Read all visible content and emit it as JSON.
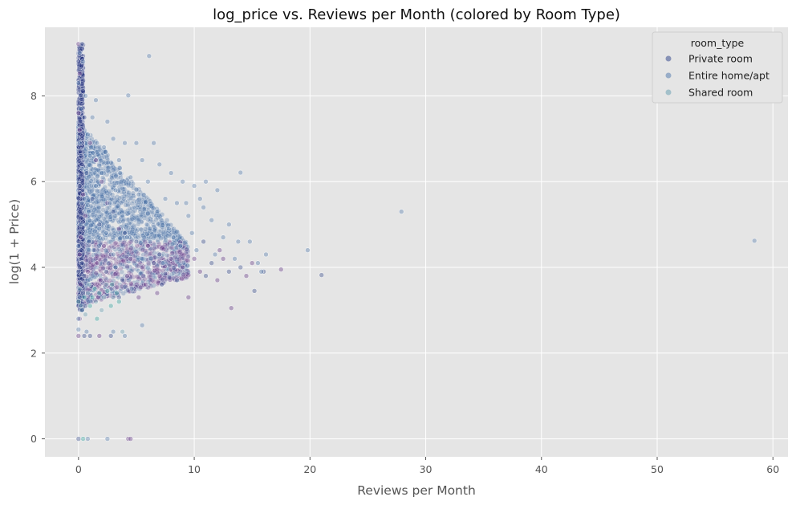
{
  "chart_data": {
    "type": "scatter",
    "title": "log_price vs. Reviews per Month (colored by Room Type)",
    "xlabel": "Reviews per Month",
    "ylabel": "log(1 + Price)",
    "xlim": [
      -2.9,
      61.3
    ],
    "ylim": [
      -0.42,
      9.6
    ],
    "xticks": [
      0,
      10,
      20,
      30,
      40,
      50,
      60
    ],
    "yticks": [
      0,
      2,
      4,
      6,
      8
    ],
    "grid": true,
    "legend": {
      "title": "room_type",
      "position": "top-right"
    },
    "series": [
      {
        "name": "Private room",
        "color": "#3b4f8f",
        "accent_color": "#6a3f8a",
        "points": [
          [
            0.0,
            9.21
          ],
          [
            0.3,
            9.21
          ],
          [
            0.1,
            8.52
          ],
          [
            0.2,
            8.01
          ],
          [
            0.0,
            7.6
          ],
          [
            0.5,
            7.5
          ],
          [
            0.1,
            7.2
          ],
          [
            0.3,
            6.9
          ],
          [
            1.0,
            6.9
          ],
          [
            0.2,
            6.6
          ],
          [
            1.5,
            6.5
          ],
          [
            0.7,
            6.2
          ],
          [
            2.0,
            6.0
          ],
          [
            0.1,
            5.9
          ],
          [
            0.4,
            5.7
          ],
          [
            1.2,
            5.6
          ],
          [
            2.5,
            5.5
          ],
          [
            3.0,
            5.3
          ],
          [
            0.6,
            5.2
          ],
          [
            1.8,
            5.0
          ],
          [
            3.5,
            4.9
          ],
          [
            4.0,
            4.8
          ],
          [
            0.2,
            4.7
          ],
          [
            0.9,
            4.6
          ],
          [
            2.2,
            4.5
          ],
          [
            5.0,
            4.6
          ],
          [
            6.0,
            4.5
          ],
          [
            1.4,
            4.4
          ],
          [
            0.1,
            4.3
          ],
          [
            2.8,
            4.3
          ],
          [
            4.5,
            4.2
          ],
          [
            7.0,
            4.3
          ],
          [
            8.0,
            4.2
          ],
          [
            0.3,
            4.1
          ],
          [
            1.6,
            4.1
          ],
          [
            3.2,
            4.0
          ],
          [
            5.5,
            4.0
          ],
          [
            6.5,
            4.1
          ],
          [
            9.0,
            4.0
          ],
          [
            0.0,
            3.9
          ],
          [
            0.8,
            3.9
          ],
          [
            2.4,
            3.9
          ],
          [
            4.2,
            3.8
          ],
          [
            7.5,
            3.85
          ],
          [
            10.5,
            3.9
          ],
          [
            0.5,
            3.8
          ],
          [
            1.9,
            3.7
          ],
          [
            3.8,
            3.7
          ],
          [
            5.8,
            3.6
          ],
          [
            8.5,
            3.7
          ],
          [
            0.2,
            3.6
          ],
          [
            1.1,
            3.55
          ],
          [
            2.9,
            3.5
          ],
          [
            4.8,
            3.5
          ],
          [
            6.8,
            3.4
          ],
          [
            0.4,
            3.4
          ],
          [
            1.7,
            3.3
          ],
          [
            3.5,
            3.3
          ],
          [
            0.0,
            3.2
          ],
          [
            0.6,
            3.1
          ],
          [
            9.5,
            3.3
          ],
          [
            11.0,
            3.8
          ],
          [
            12.0,
            3.7
          ],
          [
            13.0,
            3.9
          ],
          [
            14.5,
            3.8
          ],
          [
            16.0,
            3.9
          ],
          [
            17.5,
            3.95
          ],
          [
            21.0,
            3.82
          ],
          [
            13.2,
            3.05
          ],
          [
            15.2,
            3.45
          ],
          [
            0.1,
            2.8
          ],
          [
            1.0,
            2.4
          ],
          [
            0.0,
            2.4
          ],
          [
            0.5,
            2.4
          ],
          [
            1.8,
            2.4
          ],
          [
            2.8,
            2.4
          ],
          [
            4.3,
            0.0
          ],
          [
            0.0,
            0.0
          ],
          [
            4.5,
            0.0
          ],
          [
            0.3,
            3.0
          ],
          [
            5.2,
            3.3
          ],
          [
            7.2,
            3.6
          ],
          [
            10.0,
            4.2
          ],
          [
            11.5,
            4.1
          ],
          [
            12.5,
            4.2
          ],
          [
            14.0,
            4.0
          ],
          [
            15.0,
            4.1
          ],
          [
            10.8,
            4.6
          ],
          [
            12.2,
            4.4
          ]
        ]
      },
      {
        "name": "Entire home/apt",
        "color": "#5a7fb0",
        "points": [
          [
            0.1,
            9.0
          ],
          [
            0.4,
            8.8
          ],
          [
            0.0,
            8.3
          ],
          [
            0.6,
            8.0
          ],
          [
            1.5,
            7.9
          ],
          [
            4.3,
            8.01
          ],
          [
            6.1,
            8.93
          ],
          [
            0.2,
            7.7
          ],
          [
            1.2,
            7.5
          ],
          [
            2.5,
            7.4
          ],
          [
            3.0,
            7.0
          ],
          [
            0.8,
            7.1
          ],
          [
            4.0,
            6.9
          ],
          [
            5.0,
            6.9
          ],
          [
            6.5,
            6.9
          ],
          [
            2.2,
            6.8
          ],
          [
            1.0,
            6.6
          ],
          [
            3.5,
            6.5
          ],
          [
            5.5,
            6.5
          ],
          [
            7.0,
            6.4
          ],
          [
            8.0,
            6.2
          ],
          [
            0.3,
            6.3
          ],
          [
            2.0,
            6.2
          ],
          [
            4.5,
            6.1
          ],
          [
            6.0,
            6.0
          ],
          [
            9.0,
            6.0
          ],
          [
            10.0,
            5.9
          ],
          [
            11.0,
            6.0
          ],
          [
            1.5,
            5.9
          ],
          [
            3.2,
            5.8
          ],
          [
            5.2,
            5.7
          ],
          [
            7.5,
            5.6
          ],
          [
            8.5,
            5.5
          ],
          [
            10.5,
            5.6
          ],
          [
            12.0,
            5.8
          ],
          [
            0.5,
            5.6
          ],
          [
            2.7,
            5.5
          ],
          [
            4.8,
            5.4
          ],
          [
            6.8,
            5.3
          ],
          [
            9.5,
            5.2
          ],
          [
            11.5,
            5.1
          ],
          [
            13.0,
            5.0
          ],
          [
            14.0,
            6.21
          ],
          [
            27.9,
            5.3
          ],
          [
            0.9,
            5.3
          ],
          [
            3.8,
            5.2
          ],
          [
            5.9,
            5.0
          ],
          [
            7.8,
            4.9
          ],
          [
            9.8,
            4.8
          ],
          [
            12.5,
            4.7
          ],
          [
            13.8,
            4.6
          ],
          [
            14.8,
            4.6
          ],
          [
            16.2,
            4.3
          ],
          [
            19.8,
            4.4
          ],
          [
            58.4,
            4.62
          ],
          [
            0.2,
            5.0
          ],
          [
            1.8,
            4.9
          ],
          [
            2.4,
            4.8
          ],
          [
            4.2,
            4.7
          ],
          [
            6.2,
            4.6
          ],
          [
            8.8,
            4.5
          ],
          [
            10.2,
            4.4
          ],
          [
            11.8,
            4.3
          ],
          [
            15.5,
            4.1
          ],
          [
            0.0,
            4.5
          ],
          [
            1.3,
            4.4
          ],
          [
            3.0,
            4.3
          ],
          [
            5.5,
            4.2
          ],
          [
            7.3,
            4.1
          ],
          [
            0.1,
            6.9
          ],
          [
            0.3,
            5.5
          ],
          [
            0.0,
            2.8
          ],
          [
            0.0,
            2.55
          ],
          [
            0.7,
            2.5
          ],
          [
            3.0,
            2.5
          ],
          [
            4.0,
            2.4
          ],
          [
            5.5,
            2.65
          ],
          [
            0.8,
            0.0
          ],
          [
            2.5,
            0.0
          ],
          [
            0.1,
            3.3
          ],
          [
            2.8,
            3.5
          ],
          [
            4.6,
            3.5
          ],
          [
            8.2,
            4.7
          ],
          [
            13.5,
            4.2
          ],
          [
            15.8,
            3.9
          ],
          [
            1.6,
            6.9
          ],
          [
            3.6,
            6.2
          ],
          [
            9.3,
            5.5
          ],
          [
            10.8,
            5.4
          ]
        ]
      },
      {
        "name": "Shared room",
        "color": "#6ea3b5",
        "accent_color": "#3aa5a0",
        "points": [
          [
            0.0,
            3.2
          ],
          [
            0.2,
            3.1
          ],
          [
            0.5,
            3.3
          ],
          [
            0.8,
            3.4
          ],
          [
            1.2,
            3.3
          ],
          [
            1.5,
            3.2
          ],
          [
            1.8,
            3.4
          ],
          [
            2.2,
            3.3
          ],
          [
            2.5,
            3.45
          ],
          [
            3.0,
            3.3
          ],
          [
            3.3,
            3.4
          ],
          [
            0.3,
            3.0
          ],
          [
            1.0,
            3.1
          ],
          [
            2.0,
            3.0
          ],
          [
            2.8,
            3.1
          ],
          [
            0.1,
            3.5
          ],
          [
            1.4,
            3.5
          ],
          [
            2.4,
            3.6
          ],
          [
            3.5,
            3.2
          ],
          [
            0.6,
            2.9
          ],
          [
            1.6,
            2.8
          ],
          [
            3.8,
            2.5
          ],
          [
            0.4,
            0.0
          ],
          [
            0.9,
            3.6
          ],
          [
            2.9,
            3.6
          ]
        ]
      }
    ]
  }
}
